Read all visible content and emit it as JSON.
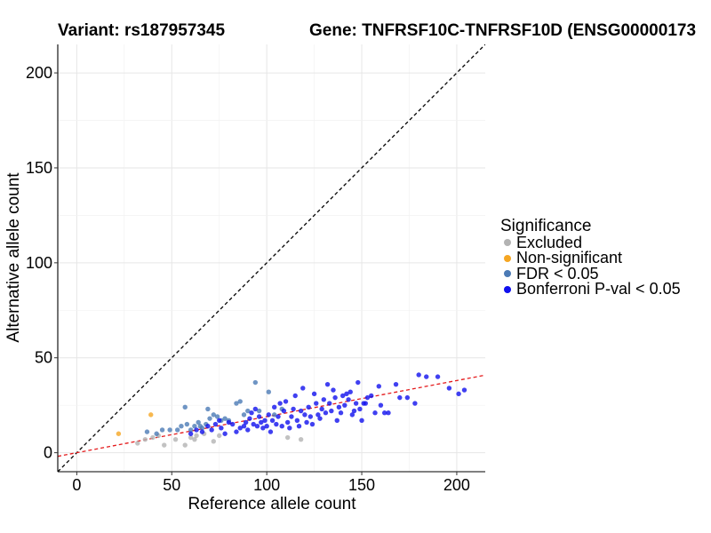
{
  "chart_data": {
    "type": "scatter",
    "title_left": "Variant: rs187957345",
    "title_right": "Gene: TNFRSF10C-TNFRSF10D (ENSG00000173",
    "xlabel": "Reference allele count",
    "ylabel": "Alternative allele count",
    "xlim": [
      -10,
      215
    ],
    "ylim": [
      -10,
      215
    ],
    "xticks": [
      0,
      50,
      100,
      150,
      200
    ],
    "yticks": [
      0,
      50,
      100,
      150,
      200
    ],
    "grid": true,
    "legend_placement": "right",
    "legend_title": "Significance",
    "reference_line": {
      "slope": 1,
      "intercept": 0,
      "color": "#000000",
      "style": "dashed"
    },
    "fit_line": {
      "slope": 0.19,
      "intercept": 0,
      "color": "#e41a1c",
      "style": "dashed"
    },
    "series": [
      {
        "name": "Excluded",
        "color": "#b3b3b3",
        "points": [
          [
            32,
            5
          ],
          [
            36,
            7
          ],
          [
            40,
            8
          ],
          [
            43,
            9
          ],
          [
            46,
            4
          ],
          [
            52,
            7
          ],
          [
            57,
            4
          ],
          [
            60,
            8
          ],
          [
            63,
            9
          ],
          [
            67,
            10
          ],
          [
            72,
            6
          ],
          [
            75,
            9
          ],
          [
            111,
            8
          ],
          [
            118,
            7
          ],
          [
            62,
            7
          ]
        ]
      },
      {
        "name": "Non-significant",
        "color": "#f5a623",
        "points": [
          [
            22,
            10
          ],
          [
            39,
            20
          ]
        ]
      },
      {
        "name": "FDR < 0.05",
        "color": "#4b7ab5",
        "points": [
          [
            37,
            11
          ],
          [
            42,
            10
          ],
          [
            45,
            12
          ],
          [
            49,
            12
          ],
          [
            53,
            12
          ],
          [
            57,
            24
          ],
          [
            58,
            15
          ],
          [
            60,
            12
          ],
          [
            62,
            14
          ],
          [
            64,
            16
          ],
          [
            65,
            14
          ],
          [
            68,
            15
          ],
          [
            69,
            23
          ],
          [
            70,
            18
          ],
          [
            72,
            20
          ],
          [
            74,
            19
          ],
          [
            76,
            17
          ],
          [
            80,
            17
          ],
          [
            84,
            26
          ],
          [
            86,
            27
          ],
          [
            88,
            20
          ],
          [
            90,
            22
          ],
          [
            94,
            37
          ],
          [
            96,
            22
          ],
          [
            101,
            32
          ],
          [
            104,
            20
          ],
          [
            108,
            23
          ],
          [
            55,
            14
          ],
          [
            66,
            13
          ],
          [
            78,
            18
          ]
        ]
      },
      {
        "name": "Bonferroni P-val < 0.05",
        "color": "#1010ee",
        "points": [
          [
            60,
            10
          ],
          [
            63,
            12
          ],
          [
            66,
            11
          ],
          [
            69,
            14
          ],
          [
            71,
            12
          ],
          [
            73,
            15
          ],
          [
            75,
            17
          ],
          [
            76,
            13
          ],
          [
            78,
            10
          ],
          [
            80,
            16
          ],
          [
            82,
            15
          ],
          [
            84,
            11
          ],
          [
            86,
            13
          ],
          [
            88,
            14
          ],
          [
            89,
            16
          ],
          [
            90,
            12
          ],
          [
            91,
            18
          ],
          [
            92,
            21
          ],
          [
            93,
            15
          ],
          [
            94,
            23
          ],
          [
            95,
            14
          ],
          [
            96,
            19
          ],
          [
            97,
            16
          ],
          [
            98,
            13
          ],
          [
            99,
            17
          ],
          [
            100,
            14
          ],
          [
            101,
            20
          ],
          [
            102,
            11
          ],
          [
            103,
            17
          ],
          [
            104,
            24
          ],
          [
            105,
            15
          ],
          [
            106,
            19
          ],
          [
            107,
            26
          ],
          [
            108,
            14
          ],
          [
            109,
            22
          ],
          [
            110,
            27
          ],
          [
            111,
            16
          ],
          [
            112,
            13
          ],
          [
            113,
            19
          ],
          [
            114,
            23
          ],
          [
            115,
            30
          ],
          [
            116,
            17
          ],
          [
            117,
            14
          ],
          [
            118,
            22
          ],
          [
            119,
            34
          ],
          [
            120,
            20
          ],
          [
            121,
            16
          ],
          [
            122,
            24
          ],
          [
            123,
            19
          ],
          [
            124,
            15
          ],
          [
            125,
            31
          ],
          [
            126,
            26
          ],
          [
            127,
            20
          ],
          [
            128,
            18
          ],
          [
            129,
            23
          ],
          [
            130,
            28
          ],
          [
            131,
            21
          ],
          [
            132,
            36
          ],
          [
            133,
            26
          ],
          [
            134,
            22
          ],
          [
            135,
            33
          ],
          [
            136,
            29
          ],
          [
            137,
            17
          ],
          [
            138,
            24
          ],
          [
            139,
            21
          ],
          [
            140,
            30
          ],
          [
            141,
            25
          ],
          [
            142,
            31
          ],
          [
            143,
            28
          ],
          [
            144,
            32
          ],
          [
            145,
            20
          ],
          [
            146,
            22
          ],
          [
            147,
            26
          ],
          [
            148,
            37
          ],
          [
            149,
            23
          ],
          [
            150,
            17
          ],
          [
            151,
            26
          ],
          [
            152,
            26
          ],
          [
            153,
            29
          ],
          [
            155,
            30
          ],
          [
            157,
            21
          ],
          [
            159,
            35
          ],
          [
            160,
            25
          ],
          [
            162,
            21
          ],
          [
            164,
            21
          ],
          [
            168,
            36
          ],
          [
            170,
            29
          ],
          [
            174,
            29
          ],
          [
            178,
            26
          ],
          [
            180,
            41
          ],
          [
            184,
            40
          ],
          [
            190,
            40
          ],
          [
            196,
            34
          ],
          [
            201,
            31
          ],
          [
            204,
            33
          ]
        ]
      }
    ]
  }
}
